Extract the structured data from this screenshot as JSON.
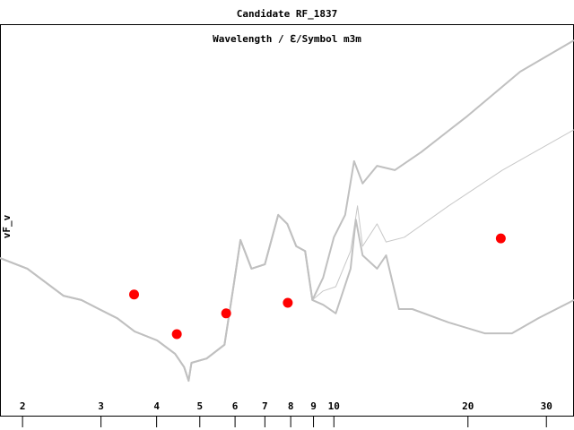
{
  "chart_data": {
    "type": "line",
    "title": "Candidate RF_1837",
    "xlabel": "Wavelength / ℇ/Symbol m3m",
    "ylabel": "vF_v",
    "xscale": "log",
    "xlim": [
      1.78,
      34.6
    ],
    "ylim": [
      0,
      100
    ],
    "xticks": [
      2,
      3,
      4,
      5,
      6,
      7,
      8,
      9,
      10,
      20,
      30
    ],
    "series": [
      {
        "color": "#c0c0c0",
        "x": [
          1.78,
          2.05,
          2.47,
          2.71,
          2.97,
          3.26,
          3.57,
          4.01,
          4.4,
          4.61,
          4.72,
          4.79,
          5.18,
          5.68,
          5.95,
          6.17,
          6.53,
          7.0,
          7.5,
          7.86,
          8.23,
          8.62,
          8.95,
          9.46,
          10.0,
          10.6,
          11.1,
          11.6,
          12.5,
          13.7,
          15.7,
          19.9,
          26.2,
          34.6
        ],
        "values": [
          40.4,
          37.7,
          30.8,
          29.7,
          27.4,
          25.1,
          21.7,
          19.4,
          16.0,
          12.6,
          9.1,
          13.7,
          14.8,
          18.3,
          33.1,
          45.0,
          37.7,
          38.8,
          51.4,
          49.1,
          43.4,
          42.2,
          29.7,
          35.4,
          45.7,
          51.4,
          65.1,
          59.4,
          63.9,
          62.8,
          67.4,
          76.5,
          87.9,
          95.9
        ]
      },
      {
        "color": "#c8c8c8",
        "x": [
          1.78,
          2.05,
          2.47,
          2.71,
          2.97,
          3.26,
          3.57,
          4.01,
          4.4,
          4.61,
          4.72,
          4.79,
          5.18,
          5.68,
          5.95,
          6.17,
          6.53,
          7.0,
          7.5,
          7.86,
          8.23,
          8.62,
          8.95,
          9.46,
          10.1,
          10.9,
          11.3,
          11.6,
          12.5,
          13.1,
          14.4,
          18.1,
          23.9,
          34.6
        ],
        "values": [
          40.4,
          37.7,
          30.8,
          29.7,
          27.4,
          25.1,
          21.7,
          19.4,
          16.0,
          12.6,
          9.1,
          13.7,
          14.8,
          18.3,
          33.1,
          45.0,
          37.7,
          38.8,
          51.4,
          49.1,
          43.4,
          42.2,
          29.7,
          32.0,
          33.1,
          42.2,
          53.7,
          43.4,
          49.1,
          44.5,
          45.7,
          53.7,
          62.8,
          73.1
        ]
      },
      {
        "color": "#c0c0c0",
        "x": [
          1.78,
          2.05,
          2.47,
          2.71,
          2.97,
          3.26,
          3.57,
          4.01,
          4.4,
          4.61,
          4.72,
          4.79,
          5.18,
          5.68,
          5.95,
          6.17,
          6.53,
          7.0,
          7.5,
          7.86,
          8.23,
          8.62,
          8.95,
          9.46,
          10.1,
          10.9,
          11.2,
          11.6,
          12.5,
          13.1,
          14.0,
          15.0,
          18.1,
          21.8,
          25.1,
          28.8,
          34.6
        ],
        "values": [
          40.4,
          37.7,
          30.8,
          29.7,
          27.4,
          25.1,
          21.7,
          19.4,
          16.0,
          12.6,
          9.1,
          13.7,
          14.8,
          18.3,
          33.1,
          45.0,
          37.7,
          38.8,
          51.4,
          49.1,
          43.4,
          42.2,
          29.7,
          28.5,
          26.3,
          37.7,
          50.2,
          41.1,
          37.7,
          41.1,
          27.4,
          27.4,
          24.0,
          21.2,
          21.2,
          25.1,
          29.7
        ]
      }
    ],
    "points": {
      "color": "#ff0000",
      "x": [
        3.56,
        4.44,
        5.73,
        7.88,
        23.7
      ],
      "values": [
        31.1,
        21.0,
        26.3,
        29.0,
        45.4
      ]
    }
  }
}
